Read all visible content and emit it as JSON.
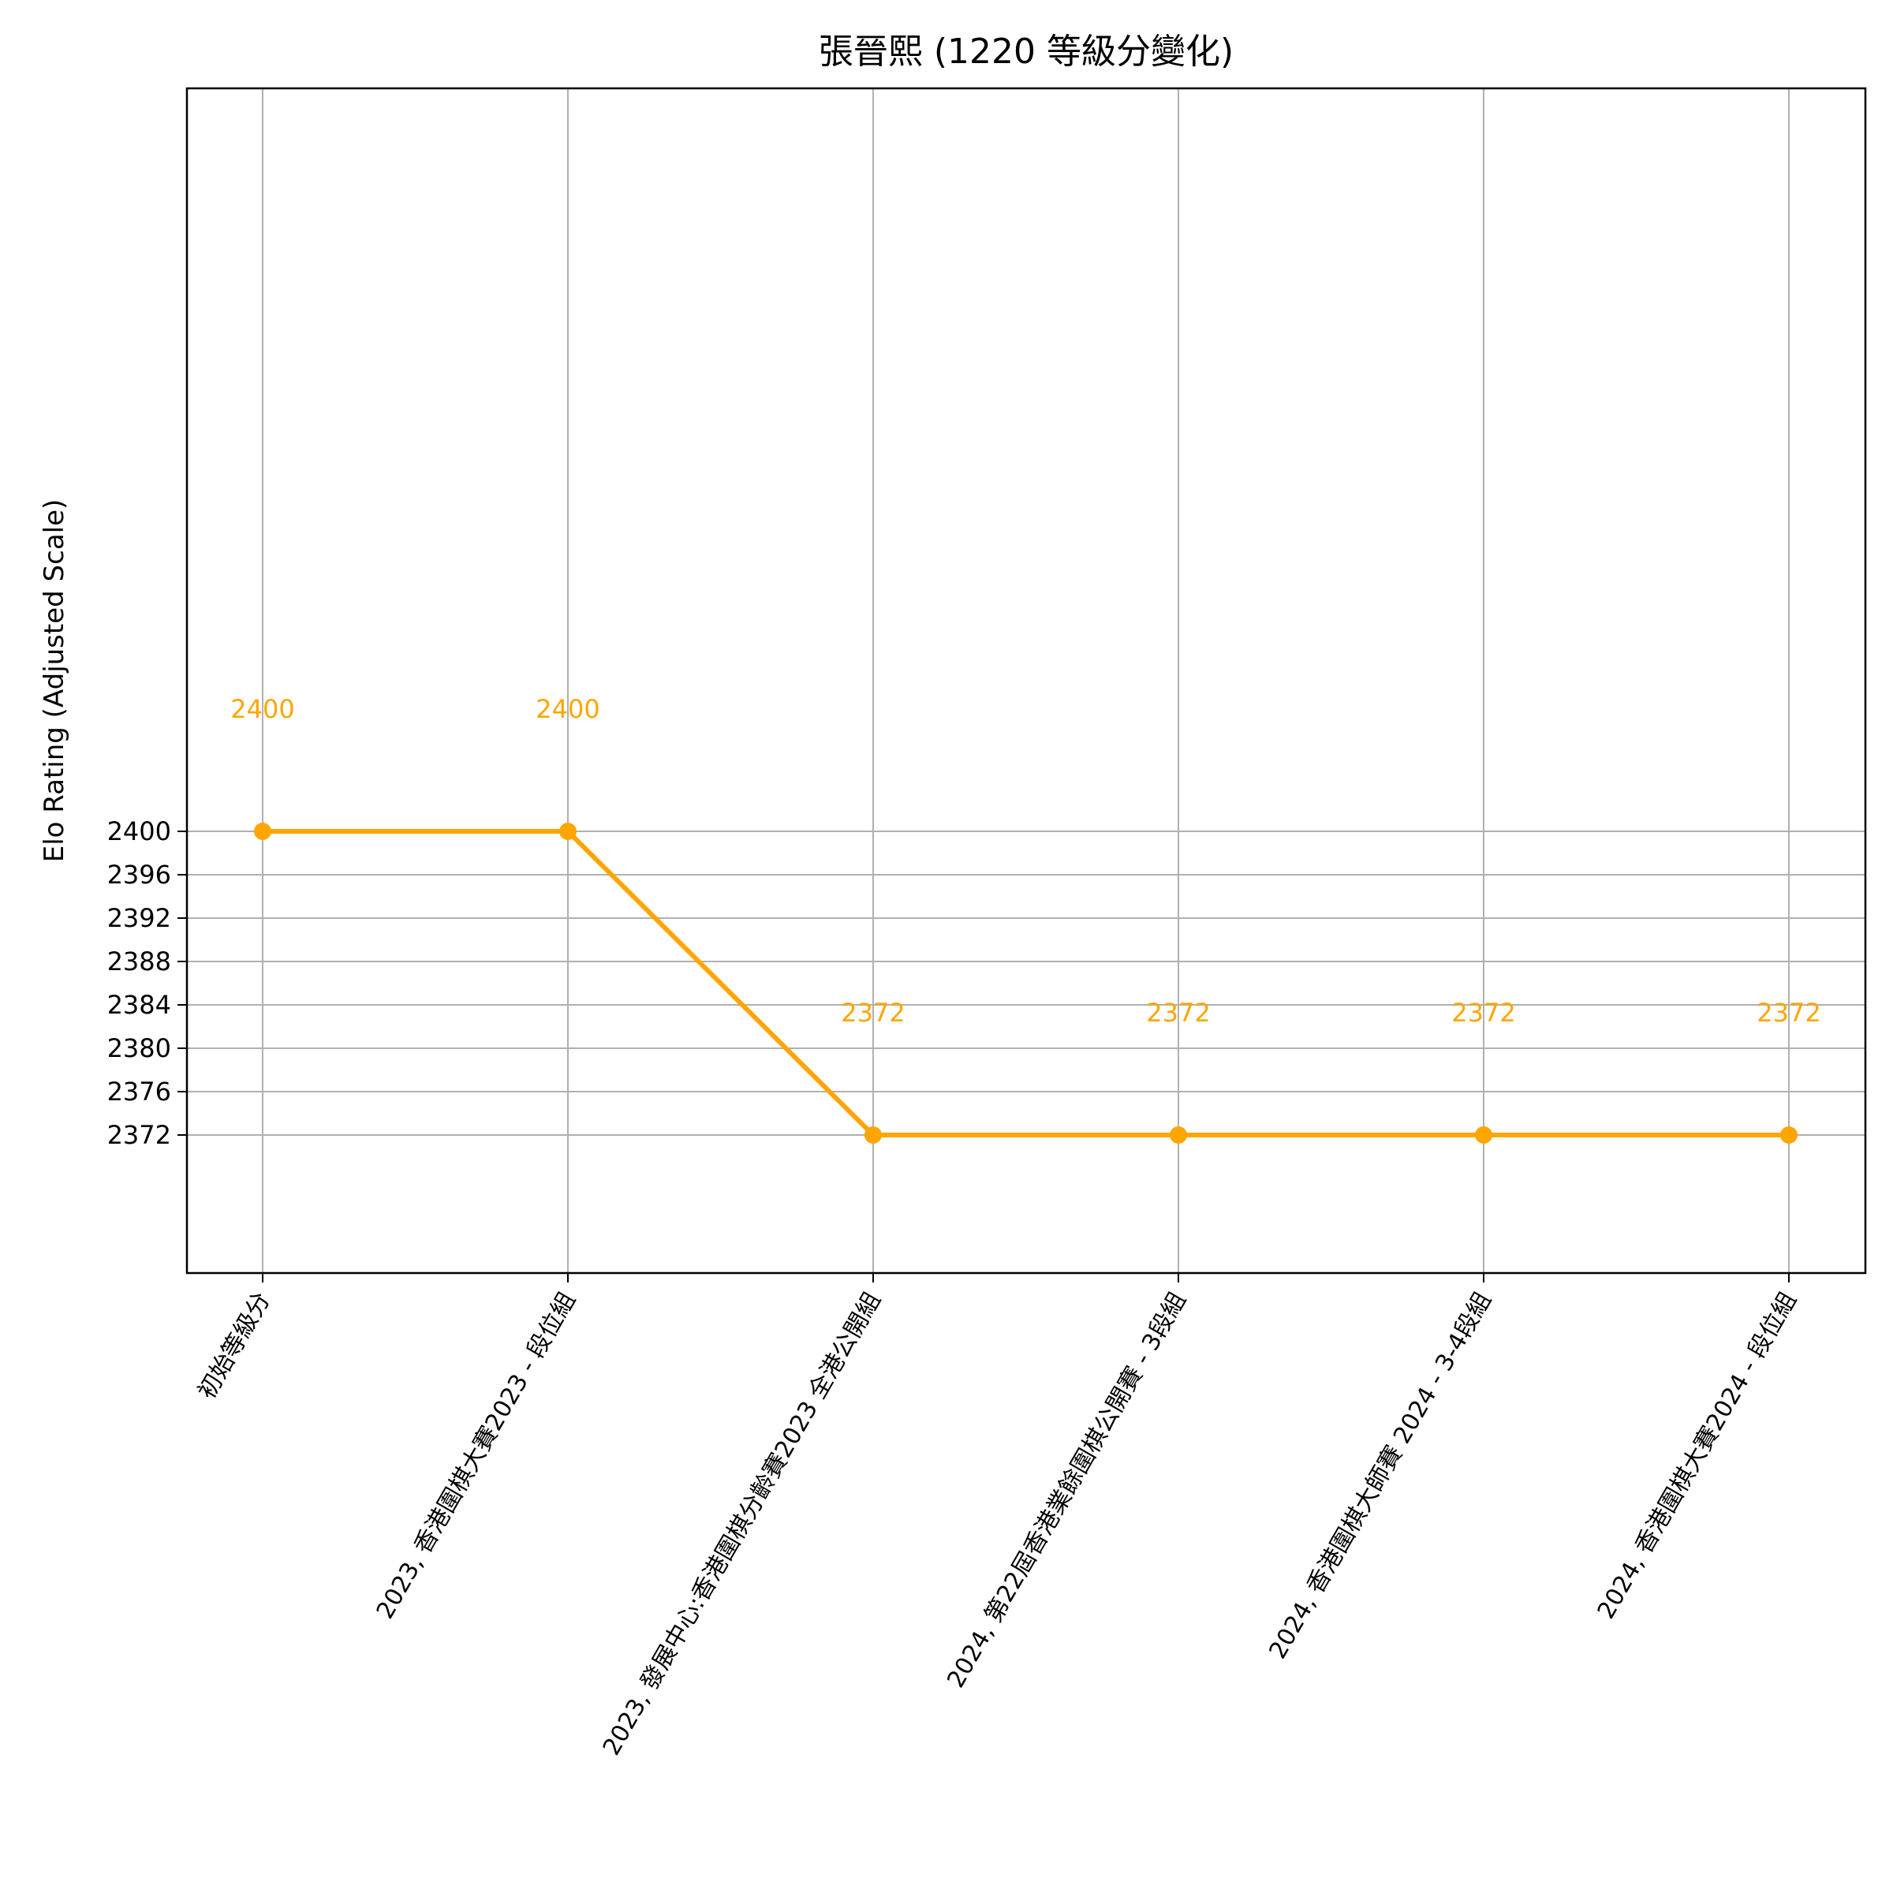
{
  "chart_data": {
    "type": "line",
    "title": "張晉熙 (1220 等級分變化)",
    "xlabel": "",
    "ylabel": "Elo Rating (Adjusted Scale)",
    "categories": [
      "初始等級分",
      "2023, 香港圍棋大賽2023 - 段位組",
      "2023, 發展中心:香港圍棋分齡賽2023 全港公開組",
      "2024, 第22屆香港業餘圍棋公開賽 - 3段組",
      "2024, 香港圍棋大師賽 2024 - 3-4段組",
      "2024, 香港圍棋大賽2024 - 段位組"
    ],
    "series": [
      {
        "values": [
          2400,
          2400,
          2372,
          2372,
          2372,
          2372
        ],
        "color": "#FFA500"
      }
    ],
    "data_labels": [
      "2400",
      "2400",
      "2372",
      "2372",
      "2372",
      "2372"
    ],
    "yticks": [
      2372,
      2376,
      2380,
      2384,
      2388,
      2392,
      2396,
      2400
    ],
    "ylim": [
      2332,
      2428
    ],
    "grid": true,
    "legend": "none"
  }
}
